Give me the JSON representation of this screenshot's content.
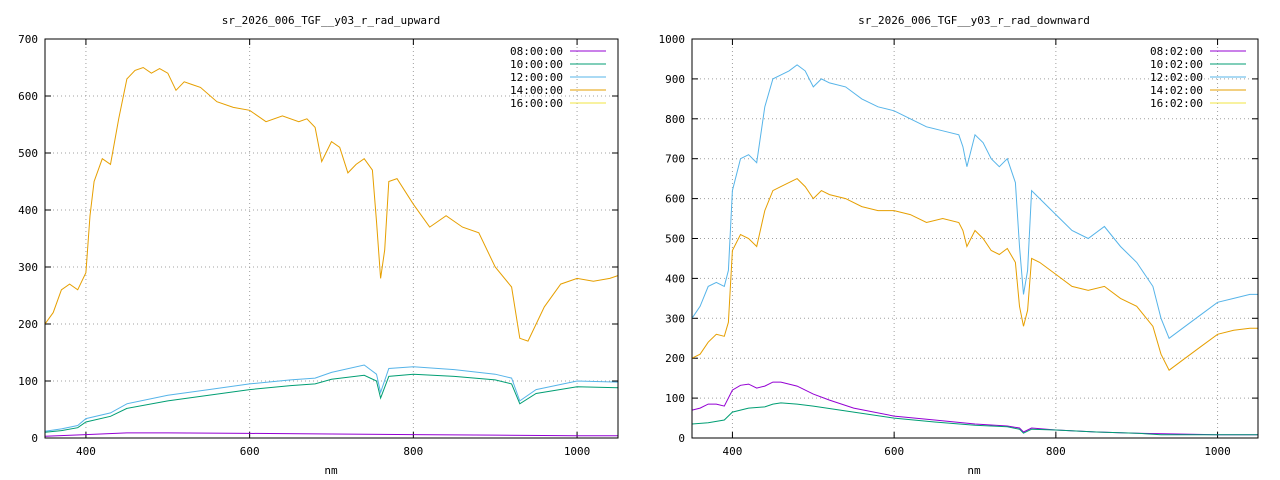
{
  "colors": {
    "purple": "#9400d3",
    "teal": "#009e73",
    "lightblue": "#56b4e9",
    "orange": "#e69f00",
    "yellow": "#f0e442"
  },
  "chart_data": [
    {
      "type": "line",
      "title": "sr_2026_006_TGF__y03_r_rad_upward",
      "xlabel": "nm",
      "ylabel": "",
      "xlim": [
        350,
        1050
      ],
      "ylim": [
        0,
        700
      ],
      "xticks": [
        400,
        600,
        800,
        1000
      ],
      "yticks": [
        0,
        100,
        200,
        300,
        400,
        500,
        600,
        700
      ],
      "grid": true,
      "legend_position": "top-right",
      "series": [
        {
          "name": "08:00:00",
          "color": "#9400d3",
          "x": [
            350,
            400,
            450,
            500,
            600,
            700,
            800,
            900,
            1000,
            1050
          ],
          "y": [
            3,
            6,
            9,
            9,
            8,
            7,
            6,
            5,
            4,
            4
          ]
        },
        {
          "name": "10:00:00",
          "color": "#009e73",
          "x": [
            350,
            370,
            390,
            400,
            430,
            450,
            500,
            550,
            600,
            650,
            680,
            700,
            740,
            755,
            760,
            770,
            800,
            850,
            900,
            920,
            930,
            950,
            1000,
            1050
          ],
          "y": [
            10,
            13,
            18,
            28,
            38,
            52,
            65,
            75,
            85,
            92,
            95,
            103,
            110,
            100,
            70,
            108,
            112,
            108,
            102,
            95,
            60,
            78,
            90,
            88
          ]
        },
        {
          "name": "12:00:00",
          "color": "#56b4e9",
          "x": [
            350,
            370,
            390,
            400,
            430,
            450,
            500,
            550,
            600,
            650,
            680,
            700,
            740,
            755,
            760,
            770,
            800,
            850,
            900,
            920,
            930,
            950,
            1000,
            1050
          ],
          "y": [
            12,
            16,
            22,
            34,
            44,
            60,
            75,
            85,
            95,
            102,
            105,
            115,
            128,
            112,
            80,
            122,
            125,
            120,
            112,
            105,
            65,
            85,
            100,
            98
          ]
        },
        {
          "name": "14:00:00",
          "color": "#e69f00",
          "x": [
            350,
            360,
            370,
            380,
            390,
            400,
            405,
            410,
            420,
            430,
            440,
            450,
            460,
            470,
            480,
            490,
            500,
            510,
            520,
            530,
            540,
            560,
            580,
            600,
            620,
            640,
            660,
            670,
            680,
            688,
            700,
            710,
            720,
            730,
            740,
            750,
            755,
            760,
            765,
            770,
            780,
            800,
            820,
            840,
            860,
            880,
            900,
            920,
            930,
            940,
            960,
            980,
            1000,
            1020,
            1040,
            1050
          ],
          "y": [
            200,
            220,
            260,
            270,
            260,
            290,
            390,
            450,
            490,
            480,
            560,
            630,
            645,
            650,
            640,
            648,
            640,
            610,
            625,
            620,
            615,
            590,
            580,
            575,
            555,
            565,
            555,
            560,
            545,
            485,
            520,
            510,
            465,
            480,
            490,
            470,
            380,
            280,
            330,
            450,
            455,
            410,
            370,
            390,
            370,
            360,
            300,
            265,
            175,
            170,
            230,
            270,
            280,
            275,
            280,
            285
          ]
        },
        {
          "name": "16:00:00",
          "color": "#f0e442",
          "x": [],
          "y": []
        }
      ]
    },
    {
      "type": "line",
      "title": "sr_2026_006_TGF__y03_r_rad_downward",
      "xlabel": "nm",
      "ylabel": "",
      "xlim": [
        350,
        1050
      ],
      "ylim": [
        0,
        1000
      ],
      "xticks": [
        400,
        600,
        800,
        1000
      ],
      "yticks": [
        0,
        100,
        200,
        300,
        400,
        500,
        600,
        700,
        800,
        900,
        1000
      ],
      "grid": true,
      "legend_position": "top-right",
      "series": [
        {
          "name": "08:02:00",
          "color": "#9400d3",
          "x": [
            350,
            360,
            370,
            380,
            390,
            400,
            410,
            420,
            430,
            440,
            450,
            460,
            480,
            500,
            520,
            550,
            600,
            650,
            700,
            740,
            755,
            760,
            770,
            800,
            850,
            900,
            950,
            1000,
            1050
          ],
          "y": [
            70,
            75,
            85,
            85,
            80,
            120,
            132,
            135,
            125,
            130,
            140,
            140,
            130,
            110,
            95,
            75,
            55,
            45,
            35,
            30,
            25,
            15,
            25,
            20,
            15,
            12,
            10,
            8,
            8
          ]
        },
        {
          "name": "10:02:00",
          "color": "#009e73",
          "x": [
            350,
            370,
            390,
            400,
            420,
            440,
            450,
            460,
            480,
            500,
            550,
            600,
            650,
            700,
            740,
            755,
            760,
            770,
            800,
            850,
            900,
            930,
            950,
            1000,
            1050
          ],
          "y": [
            35,
            38,
            45,
            65,
            75,
            78,
            85,
            88,
            85,
            80,
            65,
            50,
            40,
            32,
            28,
            22,
            12,
            22,
            20,
            15,
            12,
            8,
            8,
            8,
            8
          ]
        },
        {
          "name": "12:02:00",
          "color": "#56b4e9",
          "x": [
            350,
            360,
            370,
            380,
            390,
            395,
            400,
            410,
            420,
            430,
            440,
            450,
            460,
            470,
            480,
            490,
            500,
            510,
            520,
            540,
            560,
            580,
            600,
            620,
            640,
            660,
            680,
            685,
            690,
            700,
            710,
            720,
            730,
            740,
            750,
            755,
            760,
            765,
            770,
            780,
            800,
            820,
            840,
            860,
            880,
            900,
            920,
            930,
            940,
            960,
            980,
            1000,
            1020,
            1040,
            1050
          ],
          "y": [
            300,
            330,
            380,
            390,
            380,
            420,
            620,
            700,
            710,
            690,
            830,
            900,
            910,
            920,
            935,
            920,
            880,
            900,
            890,
            880,
            850,
            830,
            820,
            800,
            780,
            770,
            760,
            730,
            680,
            760,
            740,
            700,
            680,
            700,
            640,
            480,
            360,
            420,
            620,
            600,
            560,
            520,
            500,
            530,
            480,
            440,
            380,
            300,
            250,
            280,
            310,
            340,
            350,
            360,
            360
          ]
        },
        {
          "name": "14:02:00",
          "color": "#e69f00",
          "x": [
            350,
            360,
            370,
            380,
            390,
            395,
            400,
            410,
            420,
            430,
            440,
            450,
            460,
            470,
            480,
            490,
            500,
            510,
            520,
            540,
            560,
            580,
            600,
            620,
            640,
            660,
            680,
            685,
            690,
            700,
            710,
            720,
            730,
            740,
            750,
            755,
            760,
            765,
            770,
            780,
            800,
            820,
            840,
            860,
            880,
            900,
            920,
            930,
            940,
            960,
            980,
            1000,
            1020,
            1040,
            1050
          ],
          "y": [
            200,
            210,
            240,
            260,
            255,
            290,
            470,
            510,
            500,
            480,
            570,
            620,
            630,
            640,
            650,
            630,
            600,
            620,
            610,
            600,
            580,
            570,
            570,
            560,
            540,
            550,
            540,
            520,
            480,
            520,
            500,
            470,
            460,
            475,
            440,
            330,
            280,
            320,
            450,
            440,
            410,
            380,
            370,
            380,
            350,
            330,
            280,
            210,
            170,
            200,
            230,
            260,
            270,
            275,
            275
          ]
        },
        {
          "name": "16:02:00",
          "color": "#f0e442",
          "x": [],
          "y": []
        }
      ]
    }
  ]
}
